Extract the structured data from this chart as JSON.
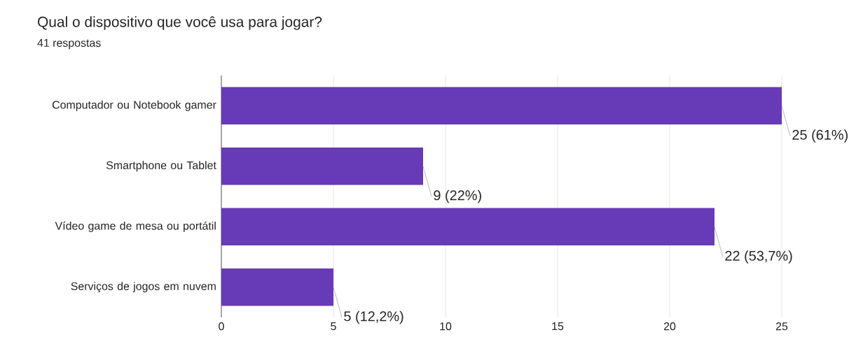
{
  "chart_data": {
    "type": "bar",
    "orientation": "horizontal",
    "title": "Qual o dispositivo que você usa para jogar?",
    "subtitle": "41 respostas",
    "categories": [
      "Computador ou Notebook gamer",
      "Smartphone ou Tablet",
      "Vídeo game de mesa ou portátil",
      "Serviços de jogos em nuvem"
    ],
    "values": [
      25,
      9,
      22,
      5
    ],
    "value_labels": [
      "25 (61%)",
      "9 (22%)",
      "22 (53,7%)",
      "5 (12,2%)"
    ],
    "color": "#673ab7",
    "xlim": [
      0,
      25
    ],
    "xticks": [
      0,
      5,
      10,
      15,
      20,
      25
    ],
    "grid": "x"
  }
}
